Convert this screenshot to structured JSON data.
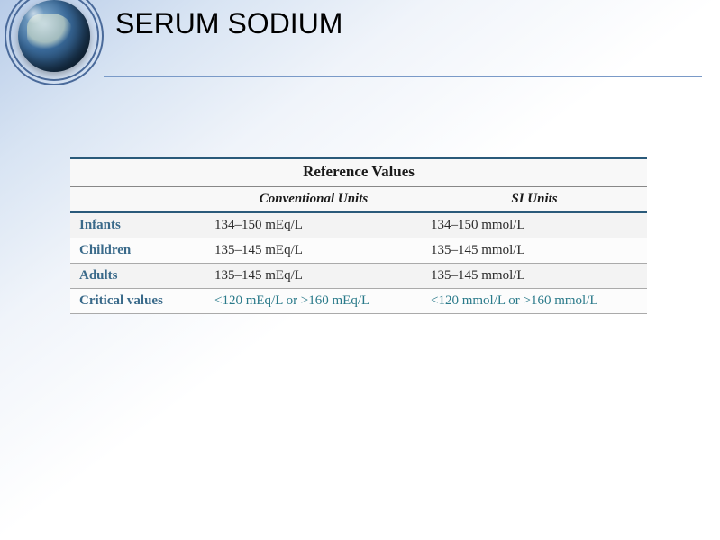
{
  "title": "SERUM SODIUM",
  "table": {
    "title": "Reference Values",
    "columns": [
      "Conventional Units",
      "SI Units"
    ],
    "rows": [
      {
        "label": "Infants",
        "conv": "134–150 mEq/L",
        "si": "134–150 mmol/L"
      },
      {
        "label": "Children",
        "conv": "135–145 mEq/L",
        "si": "135–145 mmol/L"
      },
      {
        "label": "Adults",
        "conv": "135–145 mEq/L",
        "si": "135–145 mmol/L"
      },
      {
        "label": "Critical values",
        "conv": "<120 mEq/L or >160 mEq/L",
        "si": "<120 mmol/L or >160 mmol/L"
      }
    ],
    "colors": {
      "border_dark": "#2a5a7a",
      "label_color": "#3a6a8a",
      "critical_value_color": "#2a7a8a",
      "row_alt_bg": "#f3f3f3"
    },
    "fontsize": {
      "title": 17,
      "header": 15,
      "cell": 15
    }
  },
  "background_gradient": [
    "#b8cce8",
    "#ffffff"
  ]
}
